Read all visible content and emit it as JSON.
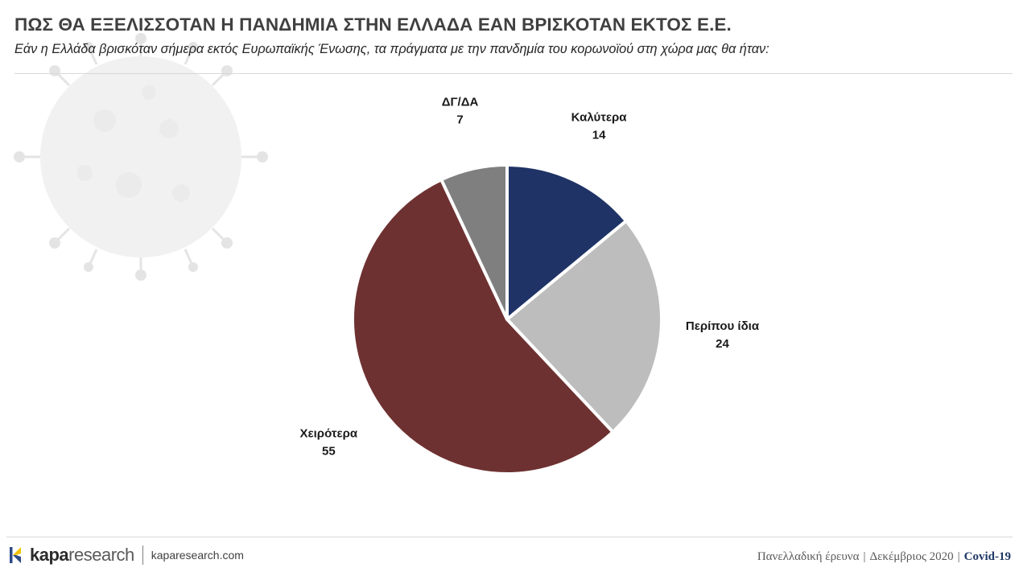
{
  "title": "ΠΩΣ ΘΑ ΕΞΕΛΙΣΣΟΤΑΝ Η ΠΑΝΔΗΜΙΑ ΣΤΗΝ ΕΛΛΑΔΑ ΕΑΝ ΒΡΙΣΚΟΤΑΝ ΕΚΤΟΣ Ε.Ε.",
  "subtitle": "Εάν η Ελλάδα βρισκόταν σήμερα εκτός Ευρωπαϊκής Ένωσης, τα πράγματα με την πανδημία του κορωνοϊού στη χώρα μας θα ήταν:",
  "chart_data": {
    "type": "pie",
    "start_angle_deg": 0,
    "direction": "clockwise",
    "slices": [
      {
        "label": "Καλύτερα",
        "value": 14,
        "color": "#1f3366"
      },
      {
        "label": "Περίπου ίδια",
        "value": 24,
        "color": "#bdbdbd"
      },
      {
        "label": "Χειρότερα",
        "value": 55,
        "color": "#6e3131"
      },
      {
        "label": "ΔΓ/ΔΑ",
        "value": 7,
        "color": "#7f7f7f"
      }
    ]
  },
  "footer": {
    "brand_bold": "kapa",
    "brand_light": "research",
    "website": "kaparesearch.com",
    "survey": "Πανελλαδική έρευνα",
    "date": "Δεκέμβριος 2020",
    "topic": "Covid-19",
    "separator": "|"
  },
  "colors": {
    "title": "#404040",
    "accent": "#1f3864",
    "logo_yellow": "#f2c300",
    "logo_blue": "#2e4a86"
  },
  "decoration": {
    "background_image": "coronavirus-illustration"
  }
}
